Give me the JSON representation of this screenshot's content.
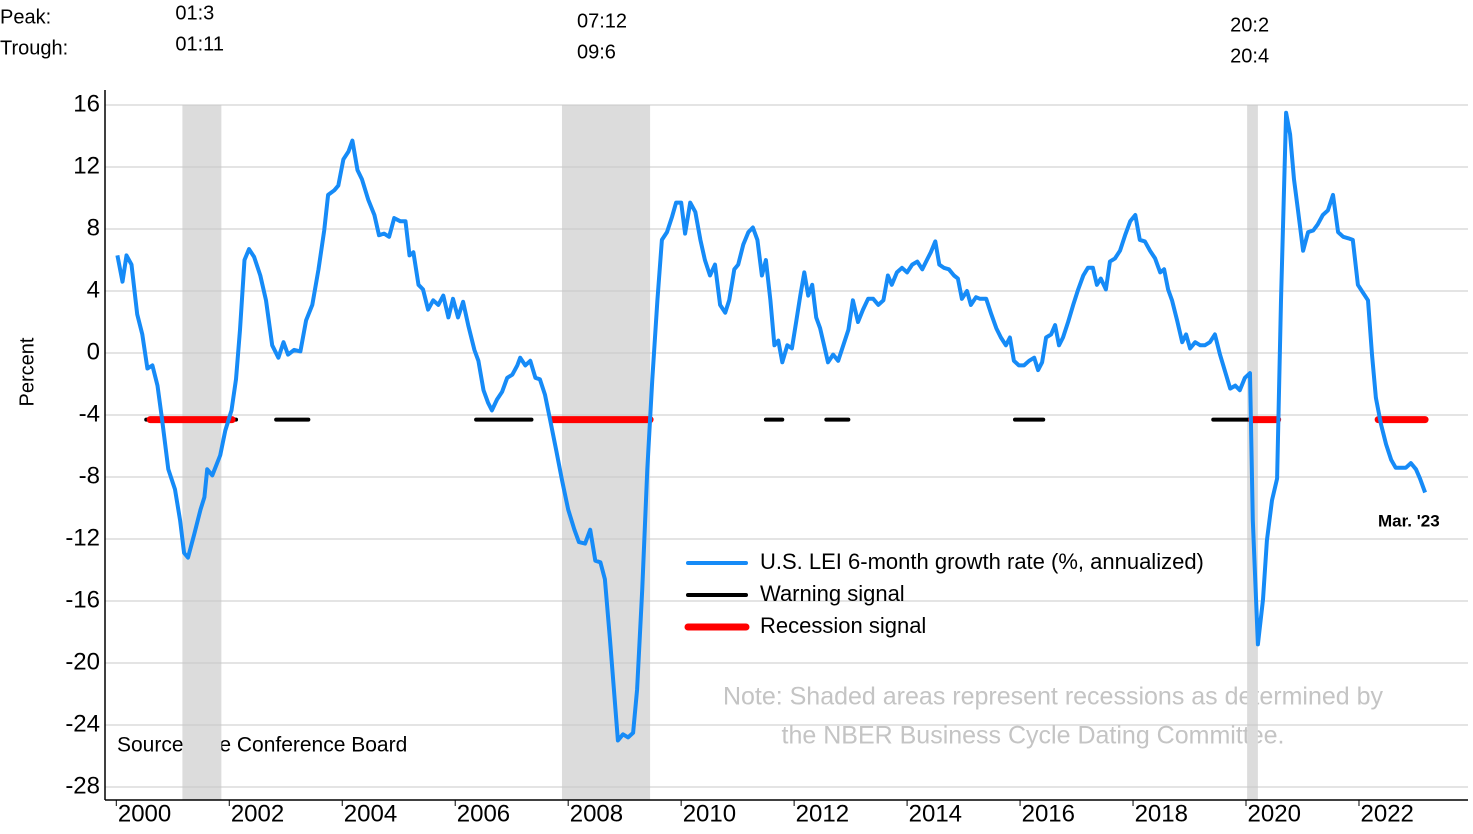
{
  "chart_data": {
    "type": "line",
    "y_label": "Percent",
    "xlim": [
      1999.8,
      2023.93
    ],
    "xticks": [
      2000,
      2002,
      2004,
      2006,
      2008,
      2010,
      2012,
      2014,
      2016,
      2018,
      2020,
      2022
    ],
    "ylim": [
      -28,
      16
    ],
    "yticks": [
      -28,
      -24,
      -20,
      -16,
      -12,
      -8,
      -4,
      0,
      4,
      8,
      12,
      16
    ],
    "grid": true,
    "series": [
      {
        "name": "U.S. LEI 6-month growth rate (%, annualized)",
        "color": "#168bf7",
        "x": [
          2000.02,
          2000.11,
          2000.18,
          2000.27,
          2000.37,
          2000.46,
          2000.55,
          2000.64,
          2000.73,
          2000.81,
          2000.92,
          2001.04,
          2001.13,
          2001.2,
          2001.27,
          2001.38,
          2001.49,
          2001.56,
          2001.61,
          2001.7,
          2001.84,
          2001.93,
          2002.04,
          2002.12,
          2002.19,
          2002.27,
          2002.35,
          2002.44,
          2002.55,
          2002.65,
          2002.76,
          2002.87,
          2002.96,
          2003.04,
          2003.15,
          2003.26,
          2003.36,
          2003.47,
          2003.58,
          2003.68,
          2003.75,
          2003.86,
          2003.93,
          2004.02,
          2004.11,
          2004.18,
          2004.27,
          2004.35,
          2004.46,
          2004.57,
          2004.65,
          2004.74,
          2004.83,
          2004.92,
          2005.03,
          2005.12,
          2005.19,
          2005.26,
          2005.35,
          2005.43,
          2005.52,
          2005.61,
          2005.7,
          2005.79,
          2005.88,
          2005.96,
          2006.05,
          2006.14,
          2006.23,
          2006.34,
          2006.41,
          2006.5,
          2006.58,
          2006.65,
          2006.74,
          2006.83,
          2006.92,
          2007.01,
          2007.1,
          2007.15,
          2007.24,
          2007.33,
          2007.42,
          2007.5,
          2007.59,
          2007.68,
          2007.79,
          2007.89,
          2008.0,
          2008.11,
          2008.19,
          2008.3,
          2008.39,
          2008.48,
          2008.57,
          2008.65,
          2008.74,
          2008.81,
          2008.88,
          2008.97,
          2009.06,
          2009.15,
          2009.22,
          2009.31,
          2009.4,
          2009.49,
          2009.58,
          2009.66,
          2009.75,
          2009.84,
          2009.91,
          2010.0,
          2010.07,
          2010.16,
          2010.25,
          2010.34,
          2010.42,
          2010.51,
          2010.6,
          2010.69,
          2010.78,
          2010.85,
          2010.94,
          2011.01,
          2011.1,
          2011.19,
          2011.27,
          2011.35,
          2011.43,
          2011.5,
          2011.58,
          2011.65,
          2011.72,
          2011.79,
          2011.88,
          2011.96,
          2012.04,
          2012.11,
          2012.18,
          2012.25,
          2012.32,
          2012.39,
          2012.46,
          2012.53,
          2012.6,
          2012.69,
          2012.78,
          2012.87,
          2012.96,
          2013.04,
          2013.13,
          2013.22,
          2013.31,
          2013.4,
          2013.49,
          2013.58,
          2013.66,
          2013.73,
          2013.82,
          2013.91,
          2014.0,
          2014.09,
          2014.18,
          2014.27,
          2014.35,
          2014.42,
          2014.5,
          2014.57,
          2014.65,
          2014.74,
          2014.83,
          2014.9,
          2014.97,
          2015.06,
          2015.13,
          2015.22,
          2015.29,
          2015.4,
          2015.49,
          2015.58,
          2015.66,
          2015.75,
          2015.82,
          2015.89,
          2015.98,
          2016.07,
          2016.16,
          2016.25,
          2016.32,
          2016.39,
          2016.46,
          2016.55,
          2016.62,
          2016.69,
          2016.76,
          2016.85,
          2016.94,
          2017.03,
          2017.12,
          2017.2,
          2017.29,
          2017.36,
          2017.43,
          2017.52,
          2017.59,
          2017.68,
          2017.77,
          2017.86,
          2017.95,
          2018.04,
          2018.12,
          2018.21,
          2018.3,
          2018.39,
          2018.48,
          2018.55,
          2018.62,
          2018.69,
          2018.78,
          2018.87,
          2018.94,
          2019.01,
          2019.1,
          2019.19,
          2019.27,
          2019.36,
          2019.45,
          2019.54,
          2019.63,
          2019.72,
          2019.81,
          2019.89,
          2019.98,
          2020.07,
          2020.12,
          2020.21,
          2020.3,
          2020.37,
          2020.46,
          2020.55,
          2020.62,
          2020.71,
          2020.78,
          2020.85,
          2020.92,
          2021.01,
          2021.1,
          2021.19,
          2021.27,
          2021.36,
          2021.45,
          2021.54,
          2021.63,
          2021.72,
          2021.81,
          2021.89,
          2021.98,
          2022.07,
          2022.16,
          2022.23,
          2022.3,
          2022.39,
          2022.48,
          2022.57,
          2022.65,
          2022.74,
          2022.83,
          2022.92,
          2023.01,
          2023.08,
          2023.17
        ],
        "values": [
          6.3,
          4.6,
          6.3,
          5.7,
          2.5,
          1.2,
          -1.0,
          -0.8,
          -2.1,
          -4.3,
          -7.5,
          -8.8,
          -10.8,
          -12.9,
          -13.2,
          -11.7,
          -10.1,
          -9.3,
          -7.5,
          -7.9,
          -6.6,
          -5.0,
          -3.7,
          -1.7,
          1.5,
          6.0,
          6.7,
          6.2,
          5.0,
          3.4,
          0.5,
          -0.3,
          0.7,
          -0.1,
          0.2,
          0.1,
          2.1,
          3.1,
          5.4,
          7.9,
          10.2,
          10.5,
          10.8,
          12.5,
          13.0,
          13.7,
          11.8,
          11.2,
          9.9,
          8.9,
          7.6,
          7.7,
          7.5,
          8.7,
          8.5,
          8.5,
          6.3,
          6.5,
          4.4,
          4.1,
          2.8,
          3.4,
          3.1,
          3.7,
          2.3,
          3.5,
          2.3,
          3.3,
          1.8,
          0.2,
          -0.5,
          -2.4,
          -3.2,
          -3.7,
          -3.0,
          -2.5,
          -1.6,
          -1.4,
          -0.8,
          -0.3,
          -0.8,
          -0.5,
          -1.6,
          -1.7,
          -2.7,
          -4.3,
          -6.3,
          -8.2,
          -10.1,
          -11.4,
          -12.2,
          -12.3,
          -11.4,
          -13.4,
          -13.5,
          -14.6,
          -18.5,
          -21.7,
          -25.0,
          -24.6,
          -24.8,
          -24.5,
          -21.7,
          -15.3,
          -7.5,
          -1.7,
          3.4,
          7.3,
          7.8,
          8.8,
          9.7,
          9.7,
          7.7,
          9.7,
          9.1,
          7.3,
          6.0,
          5.0,
          5.7,
          3.1,
          2.6,
          3.4,
          5.4,
          5.7,
          7.0,
          7.8,
          8.1,
          7.3,
          5.0,
          6.0,
          3.4,
          0.5,
          0.8,
          -0.6,
          0.5,
          0.3,
          2.1,
          3.7,
          5.2,
          3.7,
          4.4,
          2.3,
          1.6,
          0.5,
          -0.6,
          -0.1,
          -0.5,
          0.5,
          1.5,
          3.4,
          2.0,
          2.8,
          3.5,
          3.5,
          3.1,
          3.4,
          5.0,
          4.4,
          5.2,
          5.5,
          5.2,
          5.7,
          5.9,
          5.4,
          6.0,
          6.5,
          7.2,
          5.7,
          5.5,
          5.4,
          5.0,
          4.8,
          3.5,
          4.0,
          3.1,
          3.6,
          3.5,
          3.5,
          2.5,
          1.6,
          1.0,
          0.5,
          1.0,
          -0.5,
          -0.8,
          -0.8,
          -0.5,
          -0.3,
          -1.1,
          -0.6,
          1.0,
          1.2,
          1.8,
          0.5,
          1.0,
          2.0,
          3.1,
          4.1,
          5.0,
          5.5,
          5.5,
          4.4,
          4.8,
          4.1,
          5.9,
          6.1,
          6.6,
          7.6,
          8.5,
          8.9,
          7.3,
          7.2,
          6.6,
          6.1,
          5.2,
          5.4,
          4.1,
          3.4,
          2.1,
          0.7,
          1.2,
          0.3,
          0.7,
          0.5,
          0.5,
          0.7,
          1.2,
          -0.1,
          -1.2,
          -2.3,
          -2.1,
          -2.4,
          -1.6,
          -1.3,
          -10.8,
          -18.8,
          -15.9,
          -12.1,
          -9.5,
          -8.1,
          3.4,
          15.5,
          14.1,
          11.2,
          9.2,
          6.6,
          7.8,
          7.9,
          8.3,
          8.9,
          9.2,
          10.2,
          7.8,
          7.5,
          7.4,
          7.3,
          4.4,
          3.9,
          3.4,
          -0.1,
          -2.9,
          -4.6,
          -5.9,
          -6.9,
          -7.4,
          -7.4,
          -7.4,
          -7.1,
          -7.5,
          -8.1,
          -9.0
        ]
      }
    ],
    "signals": [
      {
        "name": "Warning signal",
        "color": "#000000",
        "level": -4.3,
        "periods": [
          [
            2000.53,
            2002.12
          ],
          [
            2002.83,
            2003.4
          ],
          [
            2006.37,
            2007.35
          ],
          [
            2011.5,
            2011.79
          ],
          [
            2012.57,
            2012.96
          ],
          [
            2015.91,
            2016.41
          ],
          [
            2019.42,
            2020.04
          ]
        ]
      },
      {
        "name": "Recession signal",
        "color": "#ff0000",
        "level": -4.3,
        "periods": [
          [
            2000.6,
            2002.05
          ],
          [
            2007.72,
            2009.45
          ],
          [
            2020.1,
            2020.56
          ],
          [
            2022.34,
            2023.17
          ]
        ]
      }
    ],
    "recession_header": {
      "peak": "Peak:",
      "trough": "Trough:"
    },
    "recessions": [
      {
        "peak": "01:3",
        "trough": "01:11",
        "start": 2001.17,
        "end": 2001.86
      },
      {
        "peak": "07:12",
        "trough": "09:6",
        "start": 2007.89,
        "end": 2009.45
      },
      {
        "peak": "20:2",
        "trough": "20:4",
        "start": 2020.02,
        "end": 2020.21
      }
    ],
    "end_label": "Mar. '23",
    "note": [
      "Note: Shaded areas represent recessions as determined by",
      "the NBER Business Cycle Dating Committee."
    ],
    "source": "Source: The Conference Board"
  }
}
